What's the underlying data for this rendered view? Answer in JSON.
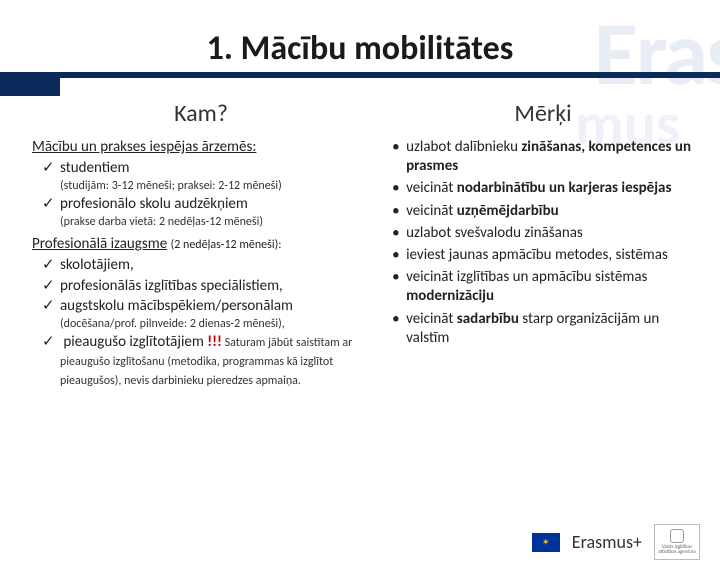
{
  "title": "1. Mācību mobilitātes",
  "left": {
    "head": "Kam?",
    "section1_title": "Mācību un prakses iespējas ārzemēs:",
    "s1_items": [
      "studentiem",
      "profesionālo skolu audzēkņiem"
    ],
    "s1_notes": [
      "(studijām: 3-12 mēneši; praksei: 2-12 mēneši)",
      "(prakse darba vietā: 2 nedēļas-12 mēneši)"
    ],
    "section2_title": "Profesionālā izaugsme",
    "section2_paren": "(2 nedēļas-12 mēneši):",
    "s2_items": [
      "skolotājiem,",
      "profesionālās izglītības speciālistiem,",
      "augstskolu mācībspēkiem/personālam"
    ],
    "s2_note1": "(docēšana/prof. pilnveide: 2 dienas-2 mēneši),",
    "s2_item_last_a": "pieaugušo izglītotājiem ",
    "s2_item_last_red": "!!!",
    "s2_item_last_tail": " Saturam jābūt saistītam ar pieaugušo izglītošanu (metodika, programmas kā izglītot pieaugušos), nevis darbinieku pieredzes apmaiņa."
  },
  "right": {
    "head": "Mērķi",
    "items": [
      {
        "pre": "uzlabot dalībnieku ",
        "b": "zināšanas, kompetences un prasmes"
      },
      {
        "pre": "veicināt ",
        "b": "nodarbinātību un karjeras iespējas"
      },
      {
        "pre": "veicināt ",
        "b": "uzņēmējdarbību"
      },
      {
        "pre": "uzlabot svešvalodu zināšanas",
        "b": ""
      },
      {
        "pre": "ieviest jaunas apmācību metodes, sistēmas",
        "b": ""
      },
      {
        "pre": "veicināt izglītības un apmācību sistēmas ",
        "b": "modernizāciju"
      },
      {
        "pre": "veicināt ",
        "b": "sadarbību",
        "post": " starp organizācijām un valstīm"
      }
    ]
  },
  "footer": {
    "brand": "Erasmus+",
    "agency": "Valsts izglītības attīstības aģentūra"
  }
}
